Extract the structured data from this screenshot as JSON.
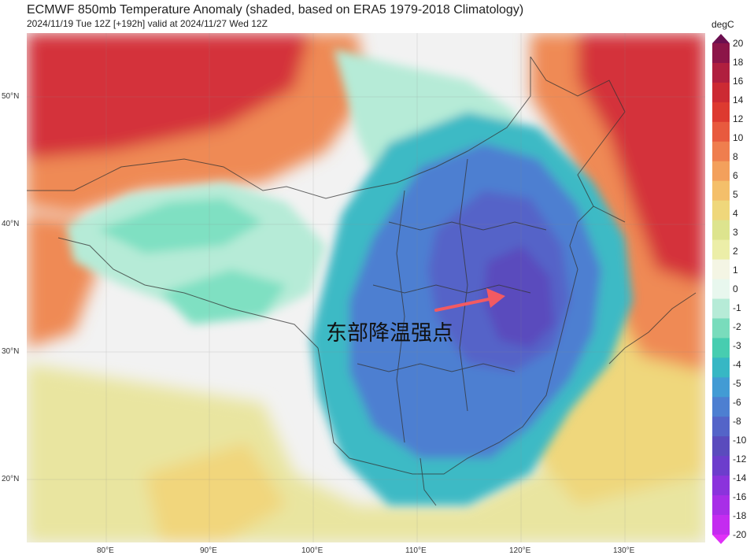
{
  "header": {
    "title": "ECMWF 850mb Temperature Anomaly (shaded, based on ERA5 1979-2018 Climatology)",
    "subtitle": "2024/11/19 Tue 12Z [+192h] valid at 2024/11/27 Wed 12Z"
  },
  "map": {
    "annotation": "东部降温强点",
    "lat_labels": [
      "50°N",
      "40°N",
      "30°N",
      "20°N"
    ],
    "lon_labels": [
      "80°E",
      "90°E",
      "100°E",
      "110°E",
      "120°E",
      "130°E"
    ]
  },
  "colorbar": {
    "unit": "degC",
    "labels": [
      "20",
      "18",
      "16",
      "14",
      "12",
      "10",
      "8",
      "6",
      "5",
      "4",
      "3",
      "2",
      "1",
      "0",
      "-1",
      "-2",
      "-3",
      "-4",
      "-5",
      "-6",
      "-8",
      "-10",
      "-12",
      "-14",
      "-16",
      "-18",
      "-20"
    ],
    "colors": [
      "#6b0f4f",
      "#8c1548",
      "#b01f3f",
      "#cc2a33",
      "#dd3a30",
      "#e85a3e",
      "#ef7e4e",
      "#f3a05c",
      "#f4bf6a",
      "#efd77b",
      "#dde48e",
      "#eceea8",
      "#f4f5e4",
      "#e8f7ee",
      "#b6ebd7",
      "#79dcbc",
      "#47cdb0",
      "#37b7c4",
      "#429bd4",
      "#4d7fd1",
      "#5464c8",
      "#5a4bbd",
      "#6c3dcc",
      "#8b33dc",
      "#a82ee7",
      "#c42cf0",
      "#e030f8"
    ]
  },
  "palette": {
    "ocean_cold": "#c6ecdb",
    "warm_strong": "#d4333a",
    "warm_mid": "#ef8a55",
    "warm_weak": "#f1d67c",
    "neutral": "#f2f2f2",
    "cool_weak": "#7fe0c2",
    "cool_mid": "#3ebac5",
    "cold_mid": "#4d7fd1",
    "cold_strong": "#5a4bbd",
    "arrow": "#f25a62"
  }
}
